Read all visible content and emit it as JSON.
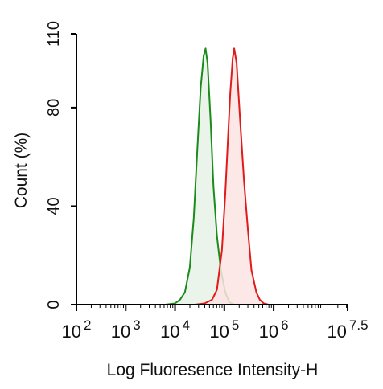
{
  "chart_data": {
    "type": "area",
    "title": "",
    "xlabel": "Log Fluoresence Intensity-H",
    "ylabel": "Count  (%)",
    "x_scale": "log",
    "xlim_log10": [
      2,
      7.5
    ],
    "ylim": [
      0,
      110
    ],
    "x_ticks": [
      {
        "base": "10",
        "exp": "2",
        "log10": 2
      },
      {
        "base": "10",
        "exp": "3",
        "log10": 3
      },
      {
        "base": "10",
        "exp": "4",
        "log10": 4
      },
      {
        "base": "10",
        "exp": "5",
        "log10": 5
      },
      {
        "base": "10",
        "exp": "6",
        "log10": 6
      },
      {
        "base": "10",
        "exp": "7.5",
        "log10": 7.5
      }
    ],
    "y_ticks": [
      {
        "label": "0",
        "value": 0
      },
      {
        "label": "40",
        "value": 40
      },
      {
        "label": "80",
        "value": 80
      },
      {
        "label": "110",
        "value": 110
      }
    ],
    "grid": false,
    "series": [
      {
        "color": "#1a8c1a",
        "fill": "#e6f2e6",
        "points": [
          [
            3.8,
            0
          ],
          [
            4.0,
            0.5
          ],
          [
            4.1,
            2
          ],
          [
            4.2,
            5
          ],
          [
            4.3,
            15
          ],
          [
            4.38,
            35
          ],
          [
            4.45,
            62
          ],
          [
            4.52,
            88
          ],
          [
            4.58,
            101
          ],
          [
            4.62,
            104
          ],
          [
            4.66,
            98
          ],
          [
            4.72,
            75
          ],
          [
            4.78,
            48
          ],
          [
            4.85,
            28
          ],
          [
            4.93,
            14
          ],
          [
            5.02,
            5
          ],
          [
            5.1,
            1
          ],
          [
            5.2,
            0
          ]
        ]
      },
      {
        "color": "#e01b1b",
        "fill": "#fde4e4",
        "points": [
          [
            4.4,
            0
          ],
          [
            4.6,
            0.5
          ],
          [
            4.75,
            2
          ],
          [
            4.85,
            6
          ],
          [
            4.95,
            22
          ],
          [
            5.02,
            45
          ],
          [
            5.08,
            70
          ],
          [
            5.12,
            86
          ],
          [
            5.17,
            100
          ],
          [
            5.2,
            104
          ],
          [
            5.25,
            98
          ],
          [
            5.32,
            75
          ],
          [
            5.4,
            50
          ],
          [
            5.48,
            30
          ],
          [
            5.55,
            14
          ],
          [
            5.65,
            5
          ],
          [
            5.72,
            2
          ],
          [
            5.8,
            0.5
          ],
          [
            5.9,
            0
          ]
        ]
      }
    ]
  }
}
